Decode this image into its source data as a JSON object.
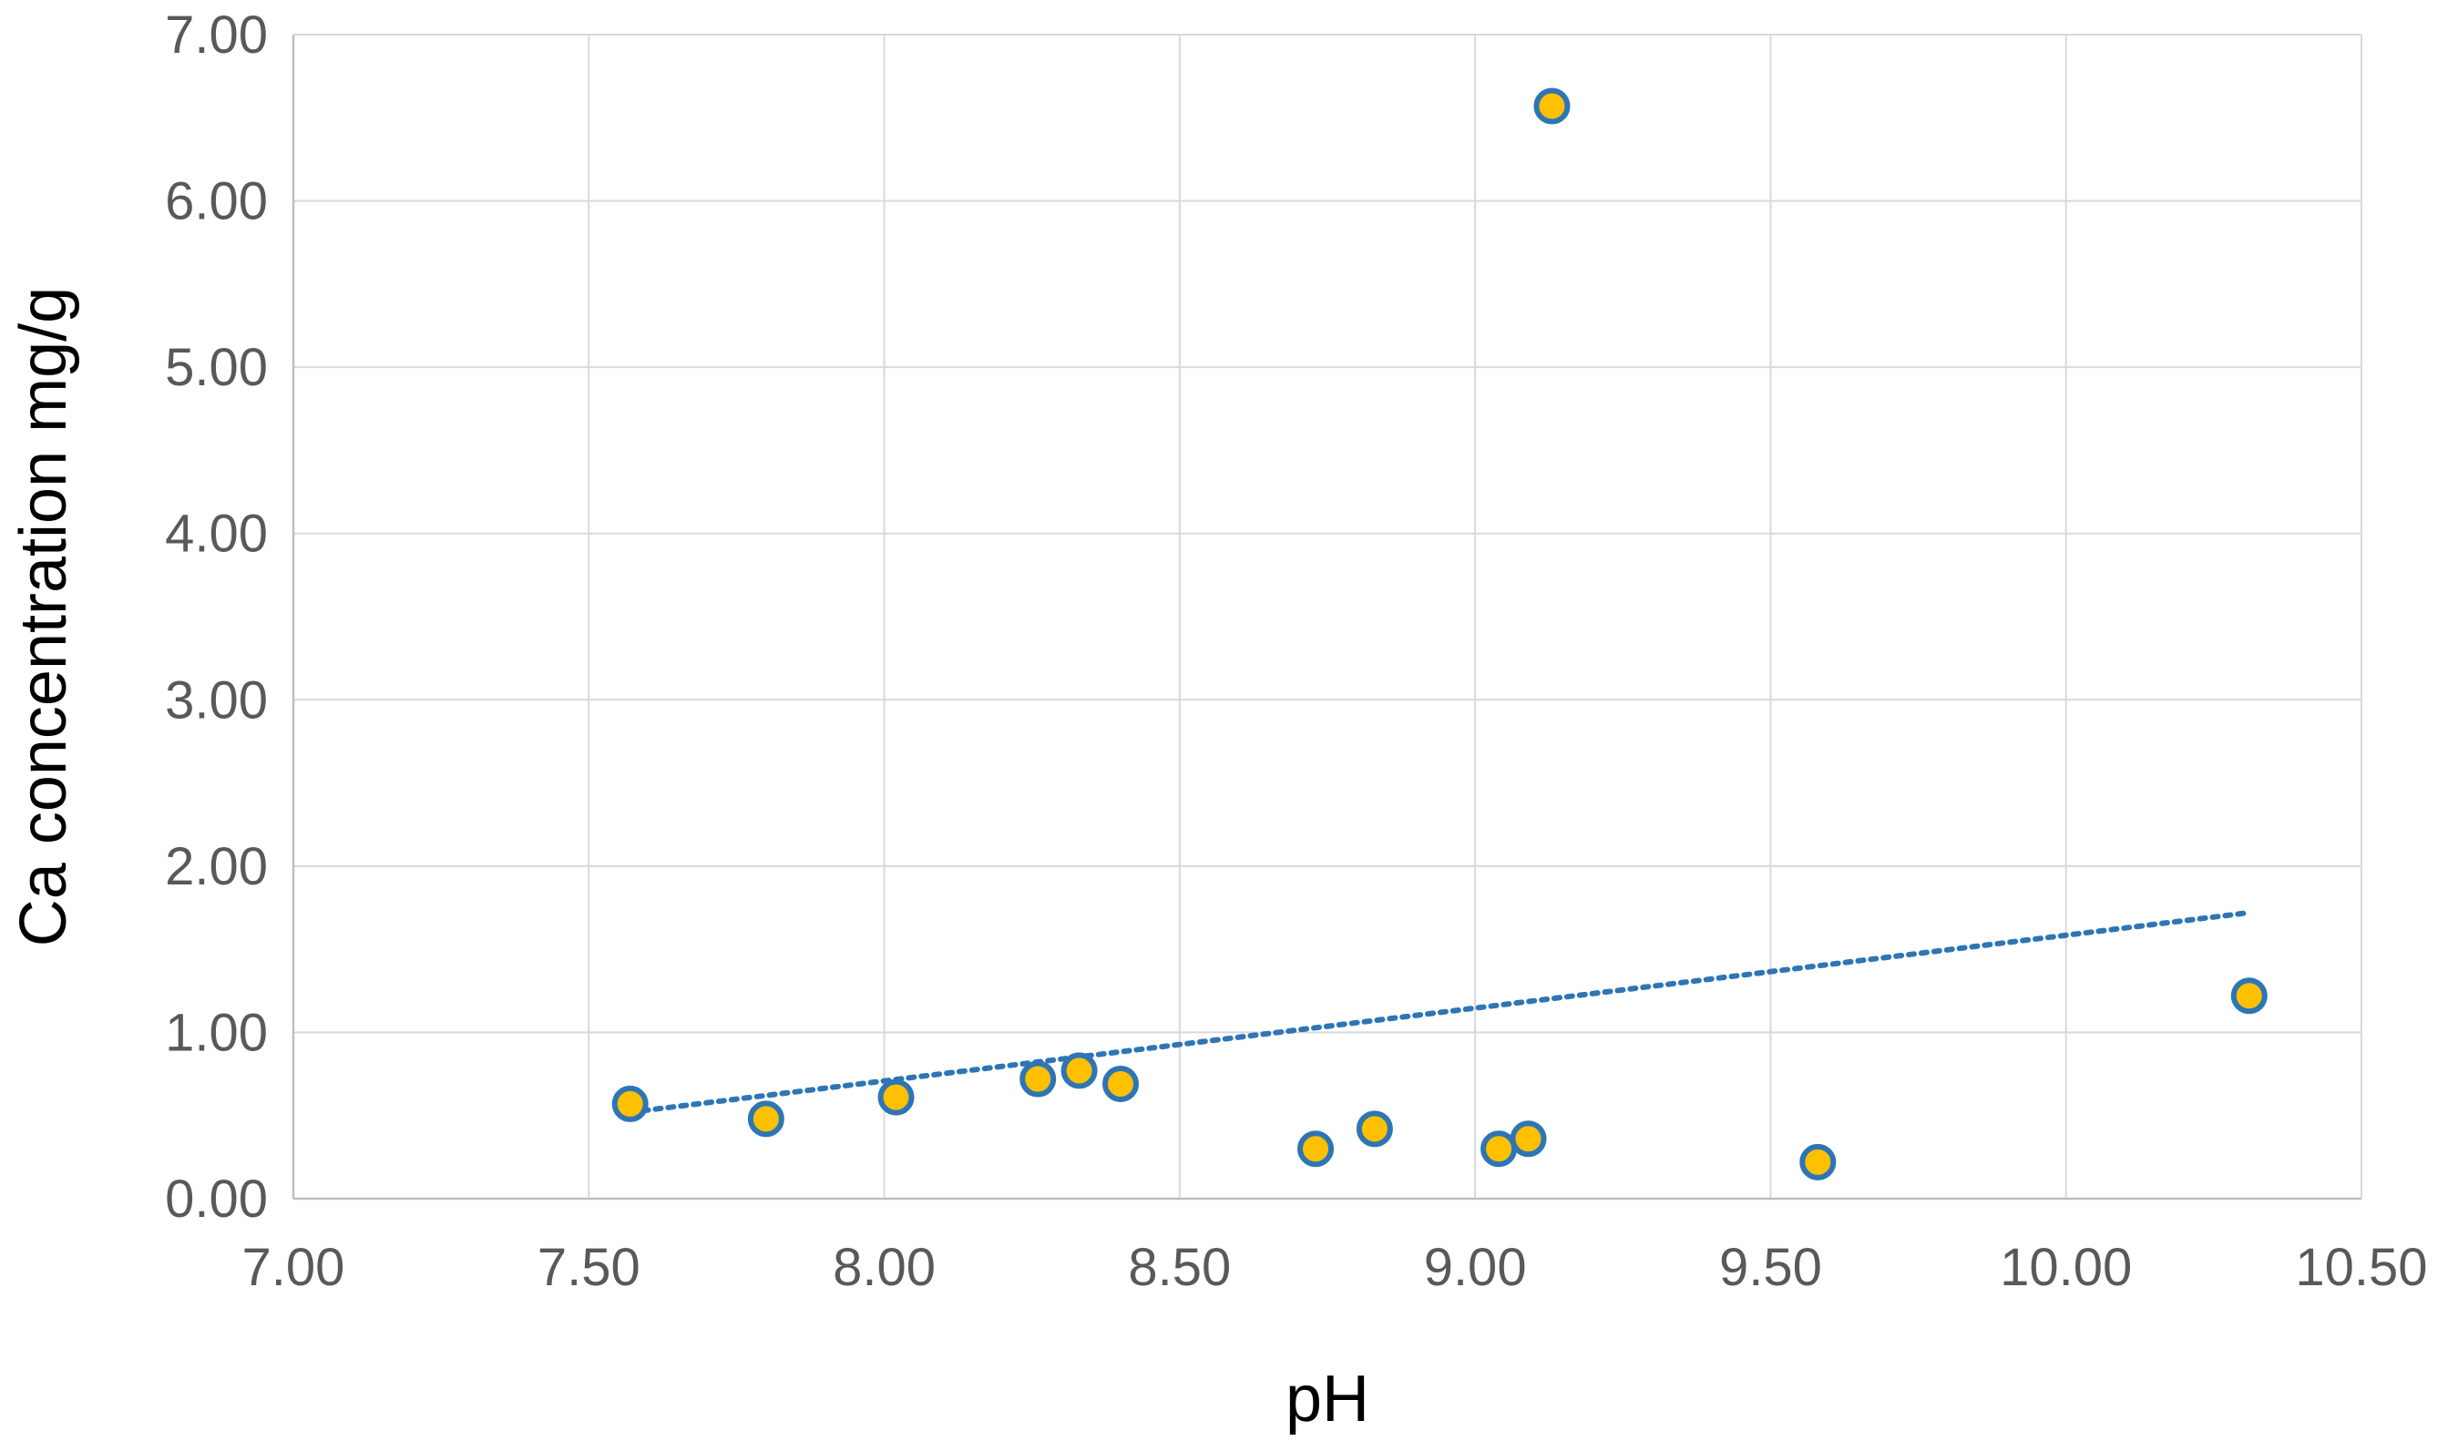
{
  "chart_data": {
    "type": "scatter",
    "title": "",
    "xlabel": "pH",
    "ylabel": "Ca concentration mg/g",
    "xlim": [
      7.0,
      10.5
    ],
    "ylim": [
      0.0,
      7.0
    ],
    "x_ticks": [
      "7.00",
      "7.50",
      "8.00",
      "8.50",
      "9.00",
      "9.50",
      "10.00",
      "10.50"
    ],
    "y_ticks": [
      "0.00",
      "1.00",
      "2.00",
      "3.00",
      "4.00",
      "5.00",
      "6.00",
      "7.00"
    ],
    "grid": true,
    "legend": "none",
    "series": [
      {
        "points": [
          {
            "x": 7.57,
            "y": 0.57
          },
          {
            "x": 7.8,
            "y": 0.48
          },
          {
            "x": 8.02,
            "y": 0.61
          },
          {
            "x": 8.26,
            "y": 0.72
          },
          {
            "x": 8.33,
            "y": 0.77
          },
          {
            "x": 8.4,
            "y": 0.69
          },
          {
            "x": 8.73,
            "y": 0.3
          },
          {
            "x": 8.83,
            "y": 0.42
          },
          {
            "x": 9.04,
            "y": 0.3
          },
          {
            "x": 9.09,
            "y": 0.36
          },
          {
            "x": 9.13,
            "y": 6.57
          },
          {
            "x": 9.58,
            "y": 0.22
          },
          {
            "x": 10.31,
            "y": 1.22
          }
        ]
      }
    ],
    "trendline": {
      "style": "dotted",
      "type": "linear",
      "x_start": 7.57,
      "y_start": 0.52,
      "x_end": 10.31,
      "y_end": 1.72
    },
    "colors": {
      "marker_fill": "#FFC000",
      "marker_stroke": "#2E75B6",
      "trendline": "#2E75B6",
      "grid": "#D9D9D9",
      "axis": "#BFBFBF",
      "tick_text": "#595959",
      "title_text": "#000000"
    }
  }
}
